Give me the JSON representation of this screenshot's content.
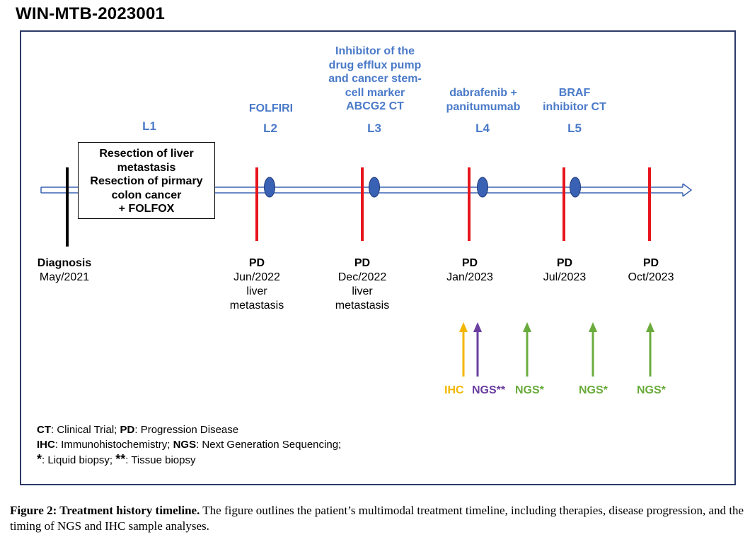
{
  "title": "WIN-MTB-2023001",
  "lines": [
    {
      "label": "L1",
      "therapy": ""
    },
    {
      "label": "L2",
      "therapy": "FOLFIRI"
    },
    {
      "label": "L3",
      "therapy": "Inhibitor of the drug efflux pump and cancer stem-cell marker ABCG2 CT"
    },
    {
      "label": "L4",
      "therapy": "dabrafenib + panitumumab"
    },
    {
      "label": "L5",
      "therapy": "BRAF inhibitor CT"
    }
  ],
  "l3_therapy_lines": [
    "Inhibitor of the",
    "drug efflux pump",
    "and cancer stem-",
    "cell marker",
    "ABCG2 CT"
  ],
  "l4_therapy_lines": [
    "dabrafenib +",
    "panitumumab"
  ],
  "l5_therapy_lines": [
    "BRAF",
    "inhibitor CT"
  ],
  "l1_box_lines": [
    "Resection of liver",
    "metastasis",
    "Resection of pirmary",
    "colon cancer",
    "+ FOLFOX"
  ],
  "events": [
    {
      "status": "Diagnosis",
      "date": "May/2021",
      "detail": [
        "",
        ""
      ]
    },
    {
      "status": "PD",
      "date": "Jun/2022",
      "detail": [
        "liver",
        "metastasis"
      ]
    },
    {
      "status": "PD",
      "date": "Dec/2022",
      "detail": [
        "liver",
        "metastasis"
      ]
    },
    {
      "status": "PD",
      "date": "Jan/2023",
      "detail": [
        "",
        ""
      ]
    },
    {
      "status": "PD",
      "date": "Jul/2023",
      "detail": [
        "",
        ""
      ]
    },
    {
      "status": "PD",
      "date": "Oct/2023",
      "detail": [
        "",
        ""
      ]
    }
  ],
  "tests": [
    {
      "label": "IHC",
      "color": "#f2b705"
    },
    {
      "label": "NGS**",
      "color": "#6a3fa0"
    },
    {
      "label": "NGS*",
      "color": "#6aab3c"
    },
    {
      "label": "NGS*",
      "color": "#6aab3c"
    },
    {
      "label": "NGS*",
      "color": "#6aab3c"
    }
  ],
  "legend": {
    "ct_abbr": "CT",
    "ct_text": ": Clinical Trial; ",
    "pd_abbr": "PD",
    "pd_text": ": Progression Disease",
    "ihc_abbr": "IHC",
    "ihc_text": ": Immunohistochemistry; ",
    "ngs_abbr": "NGS",
    "ngs_text": ": Next Generation Sequencing;",
    "star1": "*",
    "star1_text": ": Liquid biopsy; ",
    "star2": "**",
    "star2_text": ": Tissue biopsy"
  },
  "caption": {
    "bold": "Figure 2: Treatment history timeline.",
    "text": " The figure outlines the patient’s multimodal treatment timeline, including therapies, disease progression, and the timing of NGS and IHC sample analyses."
  },
  "colors": {
    "therapy_blue": "#4a7ac8",
    "pd_red": "#e8141c",
    "diagnosis_black": "#000000",
    "marker_blue": "#3a62b4",
    "frame": "#2b3a67"
  }
}
